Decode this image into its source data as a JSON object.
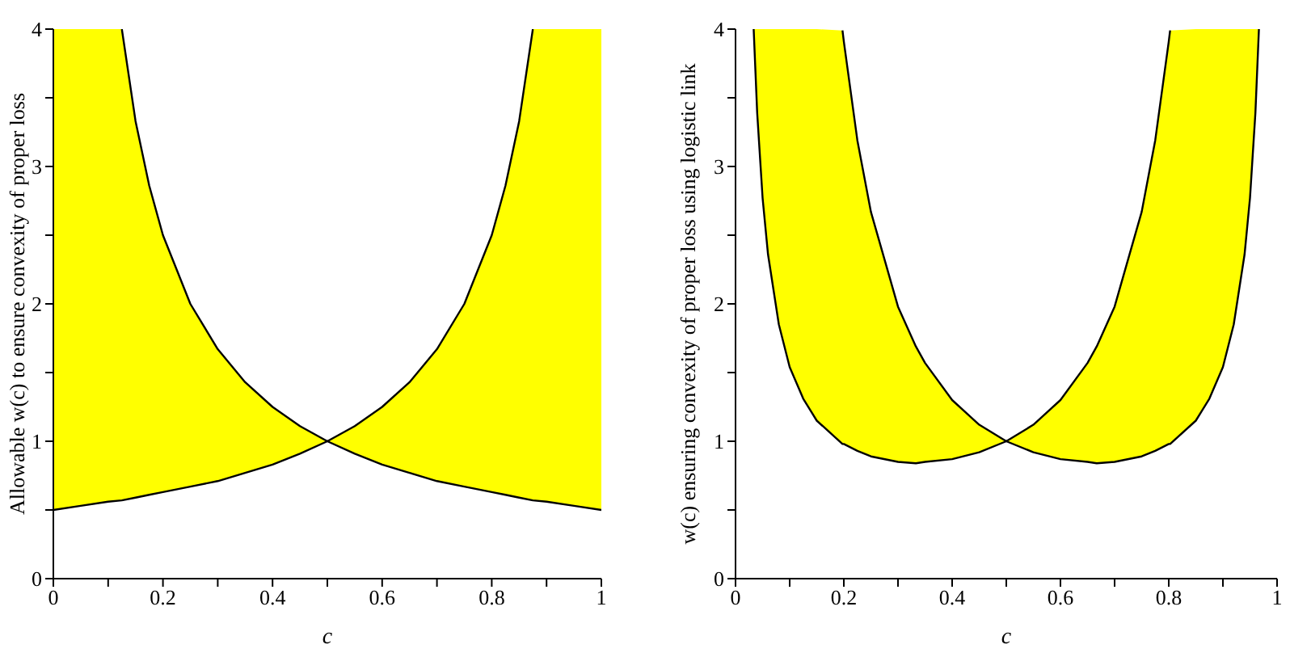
{
  "chart_data": [
    {
      "type": "line",
      "xlabel": "c",
      "ylabel": "Allowable w(c)  to ensure convexity of proper loss",
      "xlim": [
        0,
        1
      ],
      "ylim": [
        0,
        4
      ],
      "marker": "none",
      "xticks": [
        0,
        {
          "value": 0.1,
          "label": null
        },
        0.2,
        {
          "value": 0.3,
          "label": null
        },
        0.4,
        {
          "value": 0.5,
          "label": null
        },
        0.6,
        {
          "value": 0.7,
          "label": null
        },
        0.8,
        {
          "value": 0.9,
          "label": null
        },
        1
      ],
      "yticks": [
        0,
        {
          "value": 0.5,
          "label": null
        },
        1,
        {
          "value": 1.5,
          "label": null
        },
        2,
        {
          "value": 2.5,
          "label": null
        },
        3,
        {
          "value": 3.5,
          "label": null
        },
        4
      ],
      "series": [
        {
          "color": "#000000",
          "x": [
            0,
            0.05,
            0.1,
            0.125,
            0.15,
            0.175,
            0.2,
            0.25,
            0.3,
            0.35,
            0.4,
            0.45,
            0.5,
            0.55,
            0.6,
            0.65,
            0.7,
            0.75,
            0.8,
            0.825,
            0.85,
            0.875,
            0.9,
            0.95,
            1
          ],
          "values": [
            0.5,
            0.53,
            0.56,
            0.57,
            0.59,
            0.61,
            0.63,
            0.67,
            0.71,
            0.77,
            0.83,
            0.91,
            1,
            0.91,
            0.83,
            0.77,
            0.71,
            0.67,
            0.63,
            0.61,
            0.59,
            0.57,
            0.56,
            0.53,
            0.5
          ],
          "lower": [
            0.5,
            0.53,
            0.56,
            0.57,
            0.59,
            0.61,
            0.63,
            0.67,
            0.71,
            0.77,
            0.83,
            0.91,
            1,
            0.91,
            0.83,
            0.77,
            0.71,
            0.67,
            0.63,
            0.61,
            0.59,
            0.57,
            0.56,
            0.53,
            0.5
          ],
          "upper": [
            4,
            4,
            4,
            4,
            3.33,
            2.86,
            2.5,
            2,
            1.67,
            1.43,
            1.25,
            1.11,
            1,
            1.11,
            1.25,
            1.43,
            1.67,
            2,
            2.5,
            2.86,
            3.33,
            4,
            4,
            4,
            4
          ]
        },
        {
          "color": "#000000",
          "x": [
            0.125,
            0.15,
            0.175,
            0.2,
            0.25,
            0.3,
            0.35,
            0.4,
            0.45,
            0.5,
            0.55,
            0.6,
            0.65,
            0.7,
            0.75,
            0.8,
            0.825,
            0.85,
            0.875
          ],
          "values": [
            4,
            3.33,
            2.86,
            2.5,
            2,
            1.67,
            1.43,
            1.25,
            1.11,
            1,
            1.11,
            1.25,
            1.43,
            1.67,
            2,
            2.5,
            2.86,
            3.33,
            4
          ]
        }
      ]
    },
    {
      "type": "line",
      "xlabel": "c",
      "ylabel": "w(c)  ensuring convexity of proper loss using logistic link",
      "xlim": [
        0,
        1
      ],
      "ylim": [
        0,
        4
      ],
      "marker": "none",
      "xticks": [
        0,
        {
          "value": 0.1,
          "label": null
        },
        0.2,
        {
          "value": 0.3,
          "label": null
        },
        0.4,
        {
          "value": 0.5,
          "label": null
        },
        0.6,
        {
          "value": 0.7,
          "label": null
        },
        0.8,
        {
          "value": 0.9,
          "label": null
        },
        1
      ],
      "yticks": [
        0,
        {
          "value": 0.5,
          "label": null
        },
        1,
        {
          "value": 1.5,
          "label": null
        },
        2,
        {
          "value": 2.5,
          "label": null
        },
        3,
        {
          "value": 3.5,
          "label": null
        },
        4
      ],
      "series": [
        {
          "color": "#000000",
          "x": [
            0.0335,
            0.04,
            0.05,
            0.06,
            0.08,
            0.1,
            0.125,
            0.15,
            0.1975,
            0.2,
            0.225,
            0.25,
            0.3,
            0.333,
            0.35,
            0.4,
            0.45,
            0.5,
            0.55,
            0.6,
            0.65,
            0.667,
            0.7,
            0.75,
            0.775,
            0.8,
            0.8025,
            0.85,
            0.875,
            0.9,
            0.92,
            0.94,
            0.95,
            0.96,
            0.9665
          ],
          "values": [
            4,
            3.39,
            2.77,
            2.36,
            1.85,
            1.54,
            1.31,
            1.15,
            0.98,
            0.98,
            0.93,
            0.89,
            0.85,
            0.84,
            0.85,
            0.87,
            0.92,
            1,
            0.92,
            0.87,
            0.85,
            0.84,
            0.85,
            0.89,
            0.93,
            0.98,
            0.98,
            1.15,
            1.31,
            1.54,
            1.85,
            2.36,
            2.77,
            3.39,
            4
          ],
          "lower": [
            4,
            3.39,
            2.77,
            2.36,
            1.85,
            1.54,
            1.31,
            1.15,
            0.98,
            0.98,
            0.93,
            0.89,
            0.85,
            0.84,
            0.85,
            0.87,
            0.92,
            1,
            0.92,
            0.87,
            0.85,
            0.84,
            0.85,
            0.89,
            0.93,
            0.98,
            0.98,
            1.15,
            1.31,
            1.54,
            1.85,
            2.36,
            2.77,
            3.39,
            4
          ],
          "upper": [
            4,
            4,
            4,
            4,
            4,
            4,
            4,
            4,
            3.99,
            3.91,
            3.19,
            2.67,
            1.98,
            1.69,
            1.57,
            1.3,
            1.12,
            1,
            1.12,
            1.3,
            1.57,
            1.69,
            1.98,
            2.67,
            3.19,
            3.91,
            3.99,
            4,
            4,
            4,
            4,
            4,
            4,
            4,
            4
          ]
        },
        {
          "color": "#000000",
          "x": [
            0.1975,
            0.2,
            0.225,
            0.25,
            0.3,
            0.333,
            0.35,
            0.4,
            0.45,
            0.5,
            0.55,
            0.6,
            0.65,
            0.667,
            0.7,
            0.75,
            0.775,
            0.8,
            0.8025
          ],
          "values": [
            3.99,
            3.91,
            3.19,
            2.67,
            1.98,
            1.69,
            1.57,
            1.3,
            1.12,
            1,
            1.12,
            1.3,
            1.57,
            1.69,
            1.98,
            2.67,
            3.19,
            3.91,
            3.99
          ]
        }
      ]
    }
  ]
}
